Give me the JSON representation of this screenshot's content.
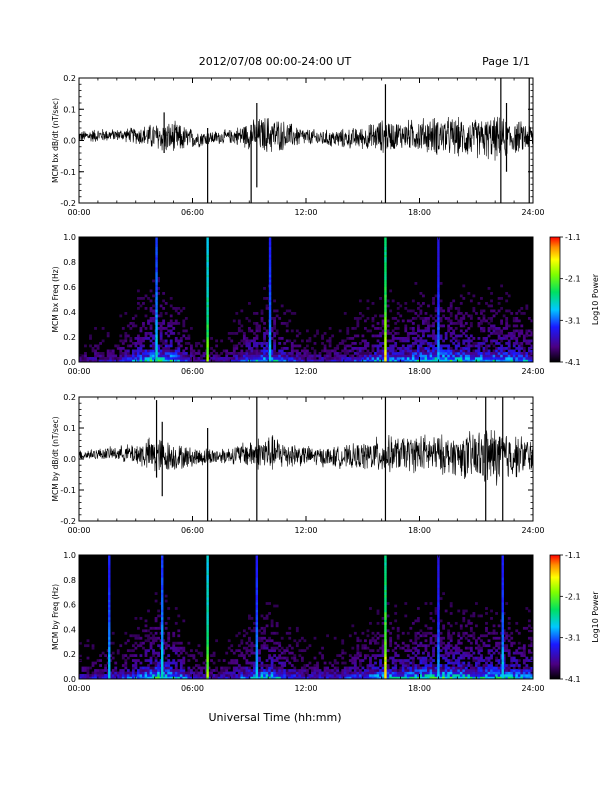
{
  "header": {
    "title": "2012/07/08  00:00-24:00 UT",
    "page": "Page 1/1"
  },
  "xlabel": "Universal Time (hh:mm)",
  "chart_data": [
    {
      "type": "line",
      "ylabel": "MCM bx dB/dt (nT/sec)",
      "xlim": [
        0,
        24
      ],
      "ylim": [
        -0.2,
        0.2
      ],
      "xticks": [
        "00:00",
        "06:00",
        "12:00",
        "18:00",
        "24:00"
      ],
      "yticks": [
        "-0.2",
        "-0.1",
        "0.0",
        "0.1",
        "0.2"
      ],
      "envelope": {
        "x_hours": [
          0,
          1,
          2,
          3,
          4,
          5,
          6,
          7,
          8,
          9,
          10,
          11,
          12,
          13,
          14,
          15,
          16,
          17,
          18,
          19,
          20,
          21,
          22,
          23,
          24
        ],
        "amplitude": [
          0.02,
          0.025,
          0.02,
          0.03,
          0.05,
          0.06,
          0.035,
          0.025,
          0.025,
          0.05,
          0.07,
          0.05,
          0.03,
          0.03,
          0.035,
          0.04,
          0.06,
          0.05,
          0.06,
          0.07,
          0.07,
          0.07,
          0.08,
          0.06,
          0.05
        ]
      },
      "spikes": [
        {
          "x_hour": 4.5,
          "high": 0.09,
          "low": -0.04
        },
        {
          "x_hour": 6.8,
          "high": 0.04,
          "low": -0.22
        },
        {
          "x_hour": 9.1,
          "high": 0.05,
          "low": -0.22
        },
        {
          "x_hour": 9.4,
          "high": 0.12,
          "low": -0.15
        },
        {
          "x_hour": 16.2,
          "high": 0.18,
          "low": -0.22
        },
        {
          "x_hour": 22.3,
          "high": 0.22,
          "low": -0.21
        },
        {
          "x_hour": 22.6,
          "high": 0.12,
          "low": -0.1
        },
        {
          "x_hour": 23.8,
          "high": 0.22,
          "low": -0.22
        }
      ]
    },
    {
      "type": "heatmap",
      "ylabel": "MCM bx Freq (Hz)",
      "xlim": [
        0,
        24
      ],
      "ylim": [
        0,
        1.0
      ],
      "xticks": [
        "00:00",
        "06:00",
        "12:00",
        "18:00",
        "24:00"
      ],
      "yticks": [
        "0.0",
        "0.2",
        "0.4",
        "0.6",
        "0.8",
        "1.0"
      ],
      "colorbar": {
        "label": "Log10 Power",
        "range": [
          -4.1,
          -1.1
        ],
        "ticks": [
          "-1.1",
          "-2.1",
          "-3.1",
          "-4.1"
        ]
      },
      "activity_hours": [
        0,
        1,
        2,
        3,
        4,
        5,
        6,
        7,
        8,
        9,
        10,
        11,
        12,
        13,
        14,
        15,
        16,
        17,
        18,
        19,
        20,
        21,
        22,
        23,
        24
      ],
      "activity": [
        0.2,
        0.3,
        0.3,
        0.6,
        0.9,
        0.8,
        0.3,
        0.25,
        0.3,
        0.6,
        0.8,
        0.5,
        0.3,
        0.3,
        0.35,
        0.5,
        0.7,
        0.6,
        0.85,
        0.9,
        0.8,
        0.7,
        0.75,
        0.7,
        0.6
      ],
      "lines": [
        {
          "x_hour": 4.1,
          "strength": 0.55
        },
        {
          "x_hour": 6.8,
          "strength": 0.8
        },
        {
          "x_hour": 10.1,
          "strength": 0.5
        },
        {
          "x_hour": 16.2,
          "strength": 0.95
        },
        {
          "x_hour": 19.0,
          "strength": 0.45
        }
      ]
    },
    {
      "type": "line",
      "ylabel": "MCM by dB/dt (nT/sec)",
      "xlim": [
        0,
        24
      ],
      "ylim": [
        -0.2,
        0.2
      ],
      "xticks": [
        "00:00",
        "06:00",
        "12:00",
        "18:00",
        "24:00"
      ],
      "yticks": [
        "-0.2",
        "-0.1",
        "0.0",
        "0.1",
        "0.2"
      ],
      "envelope": {
        "x_hours": [
          0,
          1,
          2,
          3,
          4,
          5,
          6,
          7,
          8,
          9,
          10,
          11,
          12,
          13,
          14,
          15,
          16,
          17,
          18,
          19,
          20,
          21,
          22,
          23,
          24
        ],
        "amplitude": [
          0.02,
          0.02,
          0.025,
          0.04,
          0.07,
          0.05,
          0.035,
          0.03,
          0.03,
          0.05,
          0.07,
          0.05,
          0.035,
          0.035,
          0.04,
          0.05,
          0.07,
          0.06,
          0.07,
          0.07,
          0.07,
          0.1,
          0.11,
          0.08,
          0.06
        ]
      },
      "spikes": [
        {
          "x_hour": 4.1,
          "high": 0.19,
          "low": -0.06
        },
        {
          "x_hour": 4.4,
          "high": 0.12,
          "low": -0.12
        },
        {
          "x_hour": 6.8,
          "high": 0.1,
          "low": -0.22
        },
        {
          "x_hour": 9.4,
          "high": 0.21,
          "low": -0.22
        },
        {
          "x_hour": 16.2,
          "high": 0.21,
          "low": -0.22
        },
        {
          "x_hour": 21.5,
          "high": 0.2,
          "low": -0.21
        },
        {
          "x_hour": 22.4,
          "high": 0.2,
          "low": -0.2
        }
      ]
    },
    {
      "type": "heatmap",
      "ylabel": "MCM by Freq (Hz)",
      "xlim": [
        0,
        24
      ],
      "ylim": [
        0,
        1.0
      ],
      "xticks": [
        "00:00",
        "06:00",
        "12:00",
        "18:00",
        "24:00"
      ],
      "yticks": [
        "0.0",
        "0.2",
        "0.4",
        "0.6",
        "0.8",
        "1.0"
      ],
      "colorbar": {
        "label": "Log10 Power",
        "range": [
          -4.1,
          -1.1
        ],
        "ticks": [
          "-1.1",
          "-2.1",
          "-3.1",
          "-4.1"
        ]
      },
      "activity_hours": [
        0,
        1,
        2,
        3,
        4,
        5,
        6,
        7,
        8,
        9,
        10,
        11,
        12,
        13,
        14,
        15,
        16,
        17,
        18,
        19,
        20,
        21,
        22,
        23,
        24
      ],
      "activity": [
        0.3,
        0.35,
        0.4,
        0.55,
        0.9,
        0.8,
        0.35,
        0.3,
        0.35,
        0.6,
        0.8,
        0.55,
        0.35,
        0.35,
        0.4,
        0.55,
        0.75,
        0.65,
        0.85,
        0.9,
        0.85,
        0.75,
        0.8,
        0.75,
        0.65
      ],
      "lines": [
        {
          "x_hour": 1.6,
          "strength": 0.5
        },
        {
          "x_hour": 4.4,
          "strength": 0.55
        },
        {
          "x_hour": 6.8,
          "strength": 0.8
        },
        {
          "x_hour": 9.4,
          "strength": 0.5
        },
        {
          "x_hour": 16.2,
          "strength": 0.95
        },
        {
          "x_hour": 19.0,
          "strength": 0.45
        },
        {
          "x_hour": 22.4,
          "strength": 0.5
        }
      ]
    }
  ]
}
